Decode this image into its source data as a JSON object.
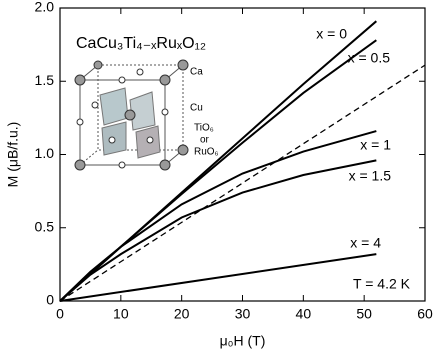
{
  "chart_data": {
    "type": "line",
    "formula": "CaCu₃Ti₄₋ₓRuₓO₁₂",
    "x_label": "μ₀H (T)",
    "y_label": "M (μB/f.u.)",
    "annotations": [
      "T = 4.2 K",
      "Ca",
      "Cu",
      "TiO₆",
      "or",
      "RuO₆"
    ],
    "xlim": [
      0,
      60
    ],
    "xticks": [
      0,
      10,
      20,
      30,
      40,
      50,
      60
    ],
    "ylim": [
      0,
      2
    ],
    "yticks": [
      0,
      0.5,
      {
        "value": 1,
        "label": "1.0"
      },
      1.5,
      {
        "value": 2,
        "label": "2.0"
      }
    ],
    "series": [
      {
        "name": "x = 0",
        "color": "#000000",
        "x": [
          0,
          10,
          20,
          30,
          40,
          52
        ],
        "values": [
          0,
          0.37,
          0.74,
          1.11,
          1.48,
          1.91
        ]
      },
      {
        "name": "x = 0.5",
        "color": "#000000",
        "x": [
          0,
          10,
          20,
          30,
          40,
          52
        ],
        "values": [
          0,
          0.37,
          0.73,
          1.08,
          1.42,
          1.78
        ]
      },
      {
        "name": "x = 1",
        "color": "#000000",
        "x": [
          0,
          5,
          10,
          20,
          30,
          40,
          52
        ],
        "values": [
          0,
          0.2,
          0.37,
          0.66,
          0.87,
          1.02,
          1.16
        ]
      },
      {
        "name": "x = 1.5",
        "color": "#000000",
        "x": [
          0,
          5,
          10,
          20,
          30,
          40,
          52
        ],
        "values": [
          0,
          0.18,
          0.32,
          0.57,
          0.74,
          0.86,
          0.96
        ]
      },
      {
        "name": "x = 4",
        "color": "#000000",
        "x": [
          0,
          52
        ],
        "values": [
          0,
          0.32
        ]
      },
      {
        "color": "#000000",
        "dashed": true,
        "x": [
          0,
          60
        ],
        "values": [
          0,
          1.61
        ]
      }
    ]
  }
}
